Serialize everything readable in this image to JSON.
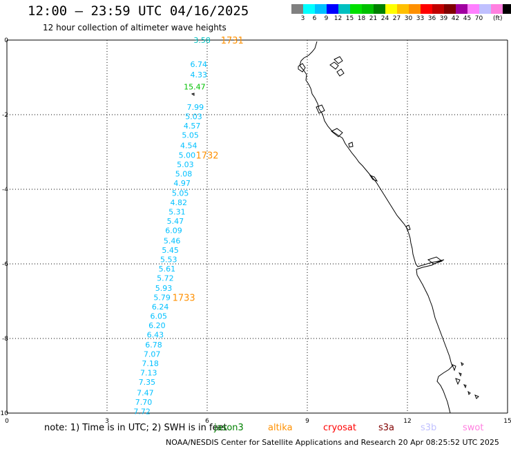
{
  "title": "12:00 — 23:59 UTC 04/16/2025",
  "subtitle": "12 hour collection of altimeter wave heights",
  "colorbar": {
    "colors": [
      "#808080",
      "#00ffff",
      "#00c0ff",
      "#0000ff",
      "#00c0c0",
      "#00e000",
      "#00c000",
      "#008000",
      "#ffff00",
      "#ffc000",
      "#ff9000",
      "#ff0000",
      "#c00000",
      "#800000",
      "#a000a0",
      "#ff80ff",
      "#c0c0ff",
      "#ff80e0",
      "#000000"
    ],
    "labels": [
      "3",
      "6",
      "9",
      "12",
      "15",
      "18",
      "21",
      "24",
      "27",
      "30",
      "33",
      "36",
      "39",
      "42",
      "45",
      "70"
    ],
    "unit": "(ft)"
  },
  "axes": {
    "x_ticks": [
      "0",
      "3",
      "6",
      "9",
      "12",
      "15"
    ],
    "y_ticks": [
      "0",
      "-2",
      "-4",
      "-6",
      "-8",
      "-10"
    ]
  },
  "swh_labels": [
    {
      "value": "3.58",
      "color": "#00c0c0",
      "lon": 6.1,
      "lat": 0.0
    },
    {
      "value": "6.74",
      "color": "#00c0ff",
      "lon": 6.0,
      "lat": -0.65
    },
    {
      "value": "4.33",
      "color": "#00c0ff",
      "lon": 6.0,
      "lat": -0.93
    },
    {
      "value": "15.47",
      "color": "#00c000",
      "lon": 5.95,
      "lat": -1.25
    },
    {
      "value": "7.99",
      "color": "#00c0ff",
      "lon": 5.9,
      "lat": -1.8
    },
    {
      "value": "5.03",
      "color": "#00c0ff",
      "lon": 5.85,
      "lat": -2.05
    },
    {
      "value": "4.57",
      "color": "#00c0ff",
      "lon": 5.8,
      "lat": -2.3
    },
    {
      "value": "5.05",
      "color": "#00c0ff",
      "lon": 5.75,
      "lat": -2.55
    },
    {
      "value": "4.54",
      "color": "#00c0ff",
      "lon": 5.7,
      "lat": -2.82
    },
    {
      "value": "5.00",
      "color": "#00c0ff",
      "lon": 5.65,
      "lat": -3.08
    },
    {
      "value": "5.03",
      "color": "#00c0ff",
      "lon": 5.6,
      "lat": -3.33
    },
    {
      "value": "5.08",
      "color": "#00c0ff",
      "lon": 5.55,
      "lat": -3.58
    },
    {
      "value": "4.97",
      "color": "#00c0ff",
      "lon": 5.5,
      "lat": -3.83
    },
    {
      "value": "5.05",
      "color": "#00c0ff",
      "lon": 5.45,
      "lat": -4.1
    },
    {
      "value": "4.82",
      "color": "#00c0ff",
      "lon": 5.4,
      "lat": -4.35
    },
    {
      "value": "5.31",
      "color": "#00c0ff",
      "lon": 5.35,
      "lat": -4.6
    },
    {
      "value": "5.47",
      "color": "#00c0ff",
      "lon": 5.3,
      "lat": -4.85
    },
    {
      "value": "6.09",
      "color": "#00c0ff",
      "lon": 5.25,
      "lat": -5.1
    },
    {
      "value": "5.46",
      "color": "#00c0ff",
      "lon": 5.2,
      "lat": -5.38
    },
    {
      "value": "5.45",
      "color": "#00c0ff",
      "lon": 5.15,
      "lat": -5.63
    },
    {
      "value": "5.53",
      "color": "#00c0ff",
      "lon": 5.1,
      "lat": -5.88
    },
    {
      "value": "5.61",
      "color": "#00c0ff",
      "lon": 5.05,
      "lat": -6.13
    },
    {
      "value": "5.72",
      "color": "#00c0ff",
      "lon": 5.0,
      "lat": -6.38
    },
    {
      "value": "5.93",
      "color": "#00c0ff",
      "lon": 4.95,
      "lat": -6.65
    },
    {
      "value": "5.79",
      "color": "#00c0ff",
      "lon": 4.9,
      "lat": -6.9
    },
    {
      "value": "6.24",
      "color": "#00c0ff",
      "lon": 4.85,
      "lat": -7.15
    },
    {
      "value": "6.05",
      "color": "#00c0ff",
      "lon": 4.8,
      "lat": -7.4
    },
    {
      "value": "6.20",
      "color": "#00c0ff",
      "lon": 4.75,
      "lat": -7.65
    },
    {
      "value": "6.43",
      "color": "#00c0ff",
      "lon": 4.7,
      "lat": -7.9
    },
    {
      "value": "6.78",
      "color": "#00c0ff",
      "lon": 4.65,
      "lat": -8.17
    },
    {
      "value": "7.07",
      "color": "#00c0ff",
      "lon": 4.6,
      "lat": -8.42
    },
    {
      "value": "7.18",
      "color": "#00c0ff",
      "lon": 4.55,
      "lat": -8.67
    },
    {
      "value": "7.13",
      "color": "#00c0ff",
      "lon": 4.5,
      "lat": -8.92
    },
    {
      "value": "7.35",
      "color": "#00c0ff",
      "lon": 4.45,
      "lat": -9.17
    },
    {
      "value": "7.47",
      "color": "#00c0ff",
      "lon": 4.4,
      "lat": -9.45
    },
    {
      "value": "7.70",
      "color": "#00c0ff",
      "lon": 4.35,
      "lat": -9.7
    },
    {
      "value": "7.72",
      "color": "#00c0ff",
      "lon": 4.3,
      "lat": -9.95
    }
  ],
  "time_labels": [
    {
      "text": "1731",
      "lon": 6.75,
      "lat": 0.0
    },
    {
      "text": "1732",
      "lon": 6.0,
      "lat": -3.08
    },
    {
      "text": "1733",
      "lon": 5.3,
      "lat": -6.9
    }
  ],
  "note_text": "note: 1) Time is in UTC; 2) SWH is in feet",
  "satellites": [
    {
      "name": "jason3",
      "color": "#008000"
    },
    {
      "name": "altika",
      "color": "#ff9000"
    },
    {
      "name": "cryosat",
      "color": "#ff0000"
    },
    {
      "name": "s3a",
      "color": "#800000"
    },
    {
      "name": "s3b",
      "color": "#c0c0ff"
    },
    {
      "name": "swot",
      "color": "#ff80e0"
    }
  ],
  "footer": "NOAA/NESDIS Center for Satellite Applications and Research   20 Apr 08:25:52 UTC 2025"
}
